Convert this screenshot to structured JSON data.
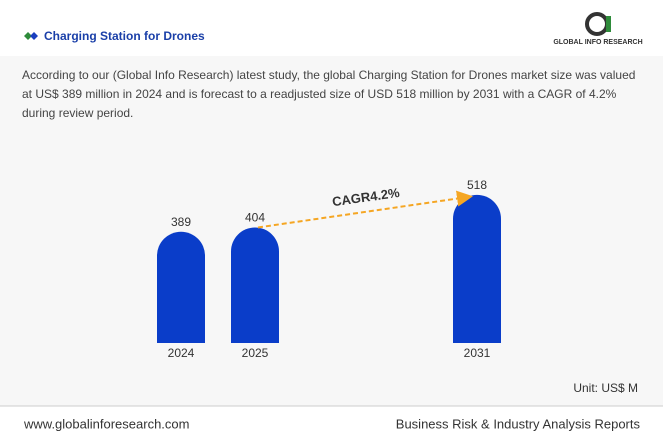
{
  "header": {
    "title": "Charging Station for Drones",
    "logo": "GLOBAL INFO RESEARCH"
  },
  "description": "According to our (Global Info Research) latest study, the global Charging Station for Drones market size was valued at US$ 389 million in 2024 and is forecast to a readjusted size of USD 518 million by 2031 with a CAGR of 4.2% during review period.",
  "chart_data": {
    "type": "bar",
    "categories": [
      "2024",
      "2025",
      "2031"
    ],
    "values": [
      389,
      404,
      518
    ],
    "color": "#0a3dc9",
    "annotation": "CAGR4.2%",
    "unit": "Unit: US$ M"
  },
  "footer": {
    "website": "www.globalinforesearch.com",
    "tagline": "Business Risk & Industry Analysis Reports"
  }
}
